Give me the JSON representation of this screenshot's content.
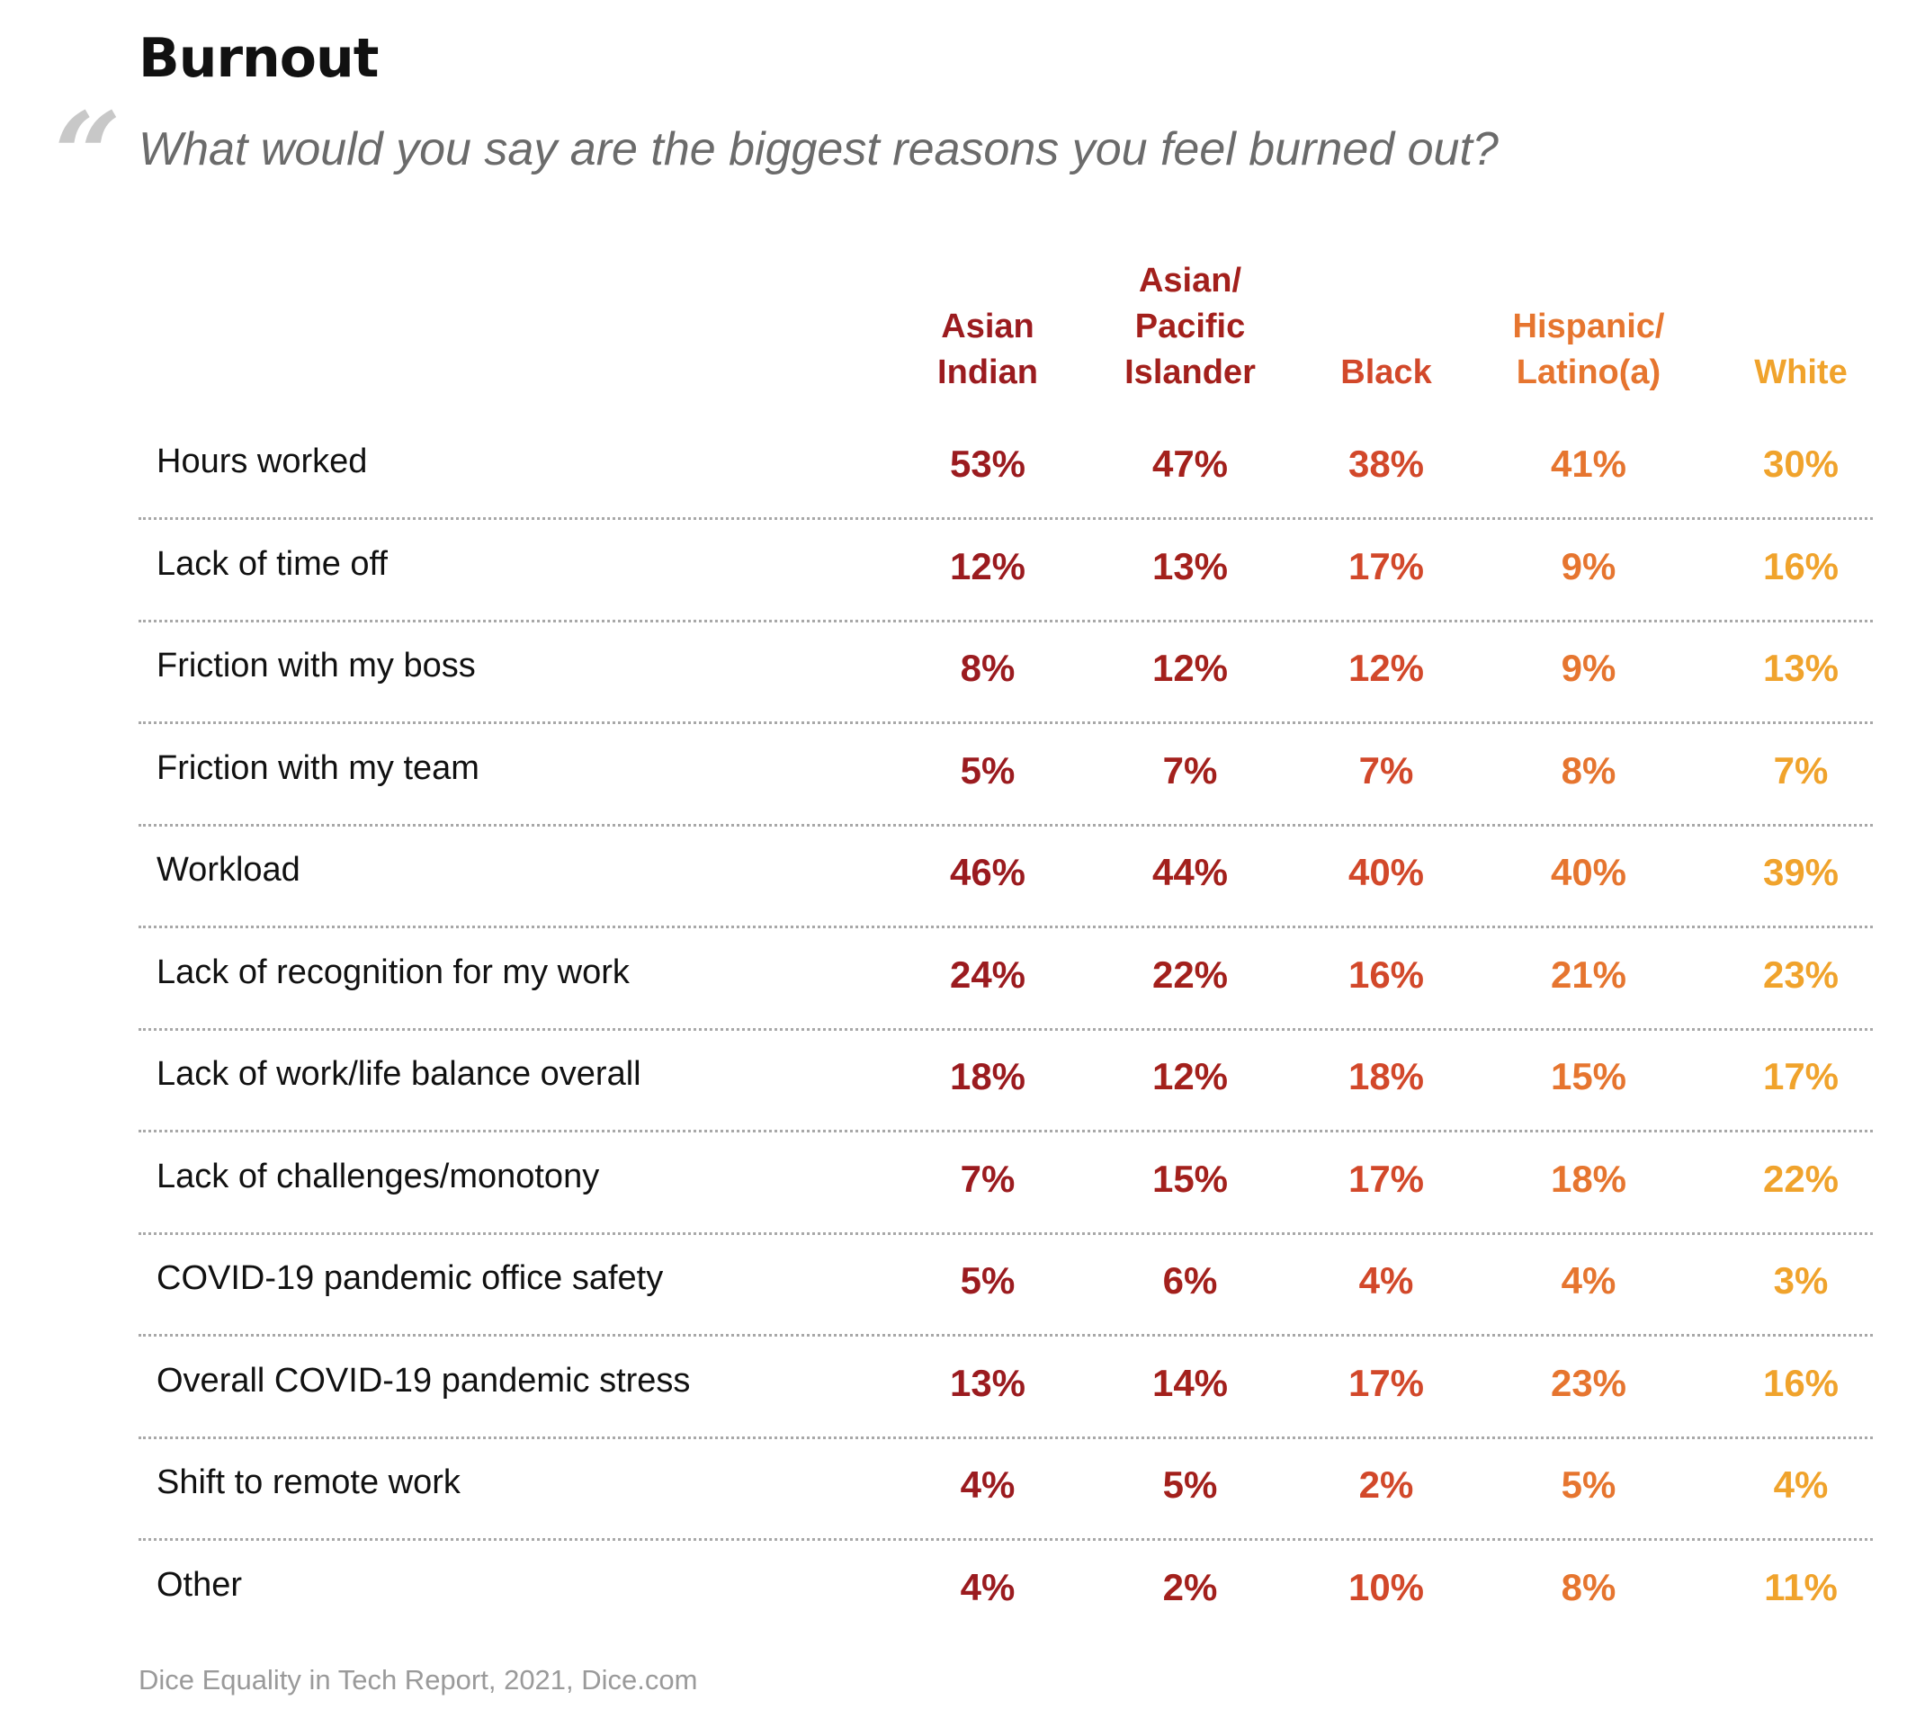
{
  "header": {
    "title": "Burnout",
    "quote_glyph": "“",
    "subtitle": "What would you say are the biggest reasons you feel burned out?"
  },
  "source": "Dice Equality in Tech Report, 2021, Dice.com",
  "colors": {
    "asian_indian": "#9b1b1f",
    "asian_pacific_islander": "#a3201c",
    "black": "#d2482a",
    "hispanic_latino": "#e6752f",
    "white": "#f0a32c"
  },
  "chart_data": {
    "type": "table",
    "title": "Burnout",
    "subtitle": "What would you say are the biggest reasons you feel burned out?",
    "columns": [
      {
        "label": "Asian\nIndian",
        "color": "#9b1b1f"
      },
      {
        "label": "Asian/\nPacific\nIslander",
        "color": "#a3201c"
      },
      {
        "label": "Black",
        "color": "#d2482a"
      },
      {
        "label": "Hispanic/\nLatino(a)",
        "color": "#e6752f"
      },
      {
        "label": "White",
        "color": "#f0a32c"
      }
    ],
    "rows": [
      {
        "label": "Hours worked",
        "values": [
          "53%",
          "47%",
          "38%",
          "41%",
          "30%"
        ]
      },
      {
        "label": "Lack of time off",
        "values": [
          "12%",
          "13%",
          "17%",
          "9%",
          "16%"
        ]
      },
      {
        "label": "Friction with my boss",
        "values": [
          "8%",
          "12%",
          "12%",
          "9%",
          "13%"
        ]
      },
      {
        "label": "Friction with my team",
        "values": [
          "5%",
          "7%",
          "7%",
          "8%",
          "7%"
        ]
      },
      {
        "label": "Workload",
        "values": [
          "46%",
          "44%",
          "40%",
          "40%",
          "39%"
        ]
      },
      {
        "label": "Lack of recognition for my work",
        "values": [
          "24%",
          "22%",
          "16%",
          "21%",
          "23%"
        ]
      },
      {
        "label": "Lack of work/life balance overall",
        "values": [
          "18%",
          "12%",
          "18%",
          "15%",
          "17%"
        ]
      },
      {
        "label": "Lack of challenges/monotony",
        "values": [
          "7%",
          "15%",
          "17%",
          "18%",
          "22%"
        ]
      },
      {
        "label": "COVID-19 pandemic office safety",
        "values": [
          "5%",
          "6%",
          "4%",
          "4%",
          "3%"
        ]
      },
      {
        "label": "Overall COVID-19 pandemic stress",
        "values": [
          "13%",
          "14%",
          "17%",
          "23%",
          "16%"
        ]
      },
      {
        "label": "Shift to remote work",
        "values": [
          "4%",
          "5%",
          "2%",
          "5%",
          "4%"
        ]
      },
      {
        "label": "Other",
        "values": [
          "4%",
          "2%",
          "10%",
          "8%",
          "11%"
        ]
      }
    ]
  }
}
